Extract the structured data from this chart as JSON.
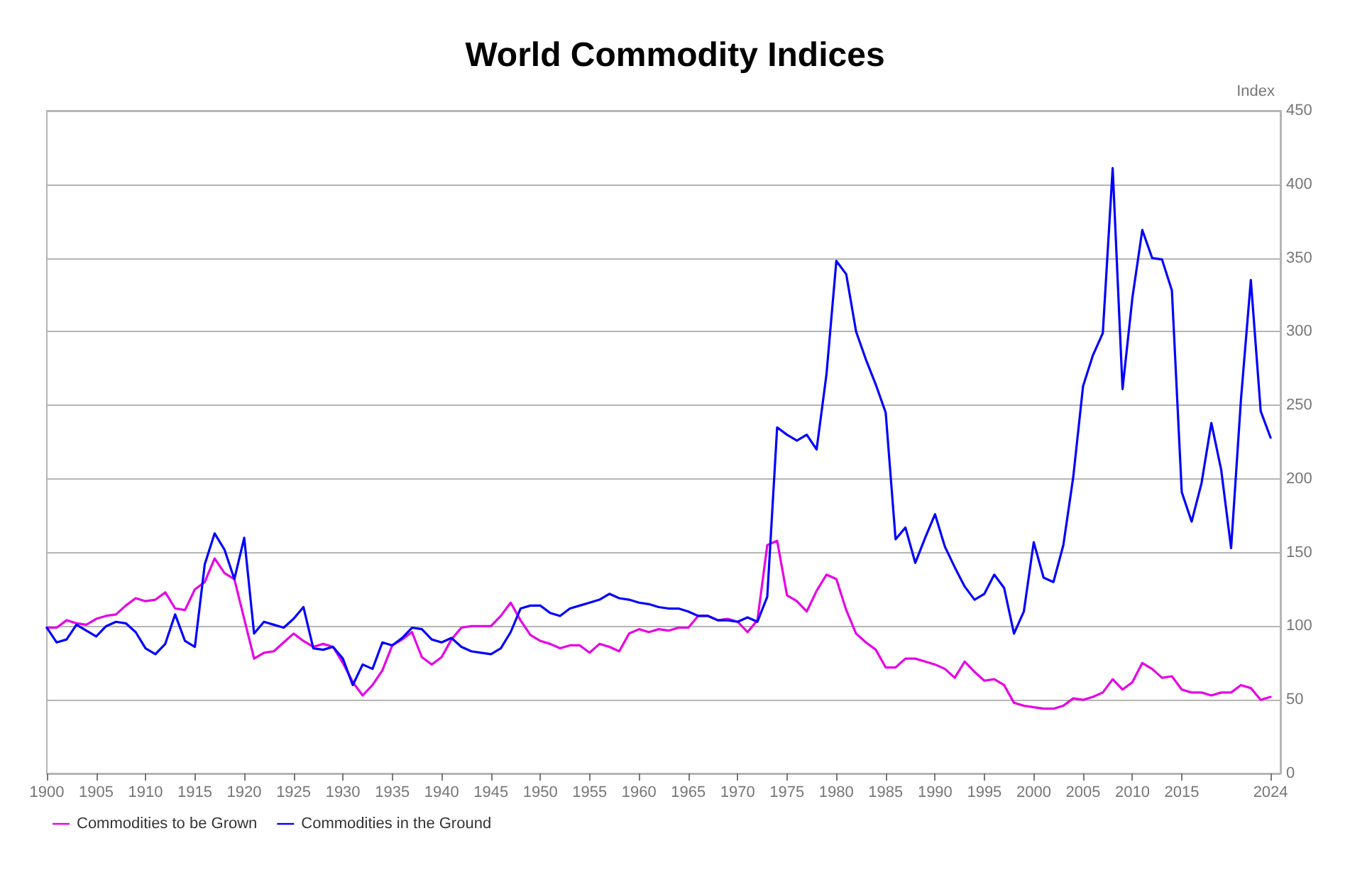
{
  "chart_data": {
    "type": "line",
    "title": "World Commodity Indices",
    "ylabel": "Index",
    "x": [
      1900,
      1901,
      1902,
      1903,
      1904,
      1905,
      1906,
      1907,
      1908,
      1909,
      1910,
      1911,
      1912,
      1913,
      1914,
      1915,
      1916,
      1917,
      1918,
      1919,
      1920,
      1921,
      1922,
      1923,
      1924,
      1925,
      1926,
      1927,
      1928,
      1929,
      1930,
      1931,
      1932,
      1933,
      1934,
      1935,
      1936,
      1937,
      1938,
      1939,
      1940,
      1941,
      1942,
      1943,
      1944,
      1945,
      1946,
      1947,
      1948,
      1949,
      1950,
      1951,
      1952,
      1953,
      1954,
      1955,
      1956,
      1957,
      1958,
      1959,
      1960,
      1961,
      1962,
      1963,
      1964,
      1965,
      1966,
      1967,
      1968,
      1969,
      1970,
      1971,
      1972,
      1973,
      1974,
      1975,
      1976,
      1977,
      1978,
      1979,
      1980,
      1981,
      1982,
      1983,
      1984,
      1985,
      1986,
      1987,
      1988,
      1989,
      1990,
      1991,
      1992,
      1993,
      1994,
      1995,
      1996,
      1997,
      1998,
      1999,
      2000,
      2001,
      2002,
      2003,
      2004,
      2005,
      2006,
      2007,
      2008,
      2009,
      2010,
      2011,
      2012,
      2013,
      2014,
      2015,
      2016,
      2017,
      2018,
      2019,
      2020,
      2021,
      2022,
      2023,
      2024
    ],
    "series": [
      {
        "name": "Commodities to be Grown",
        "color": "#e600e6",
        "values": [
          99,
          99,
          104,
          102,
          101,
          105,
          107,
          108,
          114,
          119,
          117,
          118,
          123,
          112,
          111,
          125,
          130,
          146,
          136,
          132,
          105,
          78,
          82,
          83,
          89,
          95,
          90,
          86,
          88,
          86,
          75,
          62,
          53,
          60,
          70,
          87,
          91,
          96,
          79,
          74,
          79,
          91,
          99,
          100,
          100,
          100,
          107,
          116,
          104,
          94,
          90,
          88,
          85,
          87,
          87,
          82,
          88,
          86,
          83,
          95,
          98,
          96,
          98,
          97,
          99,
          99,
          107,
          107,
          104,
          105,
          103,
          96,
          104,
          155,
          158,
          121,
          117,
          110,
          124,
          135,
          132,
          111,
          95,
          89,
          84,
          72,
          72,
          78,
          78,
          76,
          74,
          71,
          65,
          76,
          69,
          63,
          64,
          60,
          48,
          46,
          45,
          44,
          44,
          46,
          51,
          50,
          52,
          55,
          64,
          57,
          62,
          75,
          71,
          65,
          66,
          57,
          55,
          55,
          53,
          55,
          55,
          60,
          58,
          50,
          52
        ]
      },
      {
        "name": "Commodities in the Ground",
        "color": "#0000ff",
        "values": [
          99,
          89,
          91,
          101,
          97,
          93,
          100,
          103,
          102,
          96,
          85,
          81,
          88,
          108,
          90,
          86,
          142,
          163,
          152,
          132,
          160,
          95,
          103,
          101,
          99,
          105,
          113,
          85,
          84,
          86,
          78,
          60,
          74,
          71,
          89,
          87,
          92,
          99,
          98,
          91,
          89,
          92,
          86,
          83,
          82,
          81,
          85,
          96,
          112,
          114,
          114,
          109,
          107,
          112,
          114,
          116,
          118,
          122,
          119,
          118,
          116,
          115,
          113,
          112,
          112,
          110,
          107,
          107,
          104,
          104,
          103,
          106,
          103,
          120,
          235,
          230,
          226,
          230,
          220,
          271,
          348,
          339,
          300,
          281,
          264,
          245,
          159,
          167,
          143,
          160,
          176,
          154,
          140,
          127,
          118,
          122,
          135,
          126,
          95,
          110,
          157,
          133,
          130,
          155,
          201,
          263,
          284,
          299,
          411,
          261,
          323,
          369,
          350,
          349,
          328,
          191,
          171,
          197,
          238,
          206,
          153,
          254,
          335,
          246,
          228
        ]
      }
    ],
    "xlim": [
      1900,
      2025
    ],
    "xticks": [
      1900,
      1905,
      1910,
      1915,
      1920,
      1925,
      1930,
      1935,
      1940,
      1945,
      1950,
      1955,
      1960,
      1965,
      1970,
      1975,
      1980,
      1985,
      1990,
      1995,
      2000,
      2005,
      2010,
      2015,
      2024
    ],
    "ylim": [
      0,
      450
    ],
    "yticks": [
      0,
      50,
      100,
      150,
      200,
      250,
      300,
      350,
      400,
      450
    ],
    "grid": "y",
    "legend": "bottom left",
    "marker": "none",
    "line_style": "solid"
  }
}
